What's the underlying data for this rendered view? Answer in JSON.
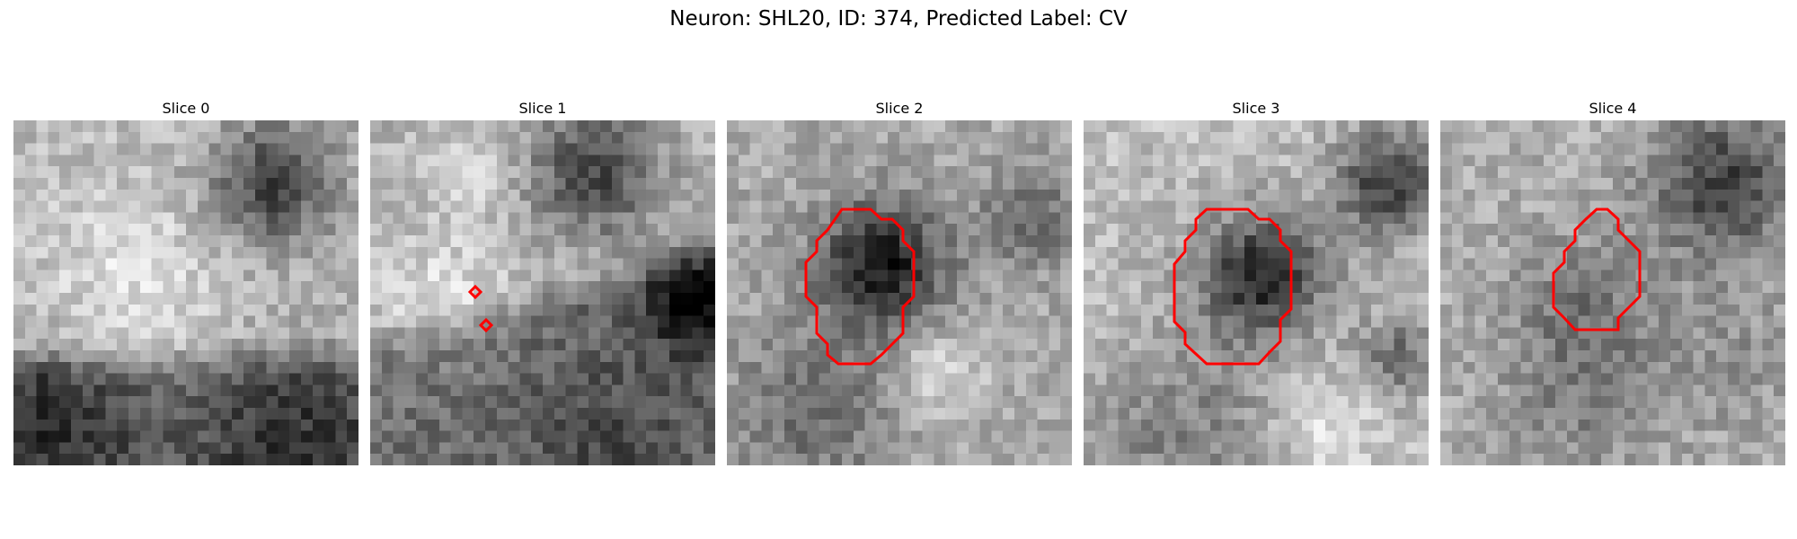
{
  "figure": {
    "title": "Neuron: SHL20, ID: 374, Predicted Label: CV",
    "overlay_color": "#ff0000"
  },
  "panels": [
    {
      "title": "Slice 0"
    },
    {
      "title": "Slice 1"
    },
    {
      "title": "Slice 2"
    },
    {
      "title": "Slice 3"
    },
    {
      "title": "Slice 4"
    }
  ]
}
